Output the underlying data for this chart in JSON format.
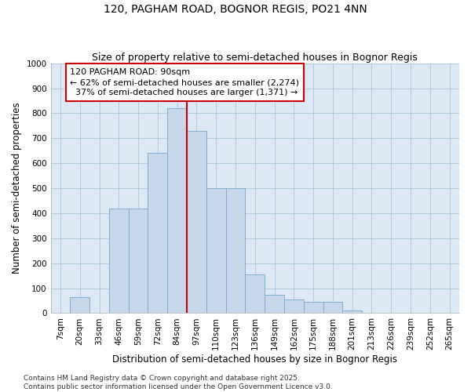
{
  "title": "120, PAGHAM ROAD, BOGNOR REGIS, PO21 4NN",
  "subtitle": "Size of property relative to semi-detached houses in Bognor Regis",
  "xlabel": "Distribution of semi-detached houses by size in Bognor Regis",
  "ylabel": "Number of semi-detached properties",
  "categories": [
    "7sqm",
    "20sqm",
    "33sqm",
    "46sqm",
    "59sqm",
    "72sqm",
    "84sqm",
    "97sqm",
    "110sqm",
    "123sqm",
    "136sqm",
    "149sqm",
    "162sqm",
    "175sqm",
    "188sqm",
    "201sqm",
    "213sqm",
    "226sqm",
    "239sqm",
    "252sqm",
    "265sqm"
  ],
  "values": [
    0,
    65,
    0,
    420,
    420,
    640,
    820,
    730,
    500,
    500,
    155,
    75,
    55,
    45,
    45,
    10,
    0,
    0,
    0,
    0,
    0
  ],
  "bar_color": "#c8d8ec",
  "bar_edge_color": "#7aaed0",
  "vline_x_index": 6,
  "vline_color": "#cc0000",
  "annotation_text": "120 PAGHAM ROAD: 90sqm\n← 62% of semi-detached houses are smaller (2,274)\n  37% of semi-detached houses are larger (1,371) →",
  "annotation_box_color": "#ffffff",
  "annotation_box_edge_color": "#cc0000",
  "ylim": [
    0,
    1000
  ],
  "yticks": [
    0,
    100,
    200,
    300,
    400,
    500,
    600,
    700,
    800,
    900,
    1000
  ],
  "grid_color": "#adc4dc",
  "background_color": "#dce8f4",
  "footer_line1": "Contains HM Land Registry data © Crown copyright and database right 2025.",
  "footer_line2": "Contains public sector information licensed under the Open Government Licence v3.0.",
  "title_fontsize": 10,
  "subtitle_fontsize": 9,
  "axis_label_fontsize": 8.5,
  "tick_fontsize": 7.5,
  "annotation_fontsize": 8,
  "footer_fontsize": 6.5
}
